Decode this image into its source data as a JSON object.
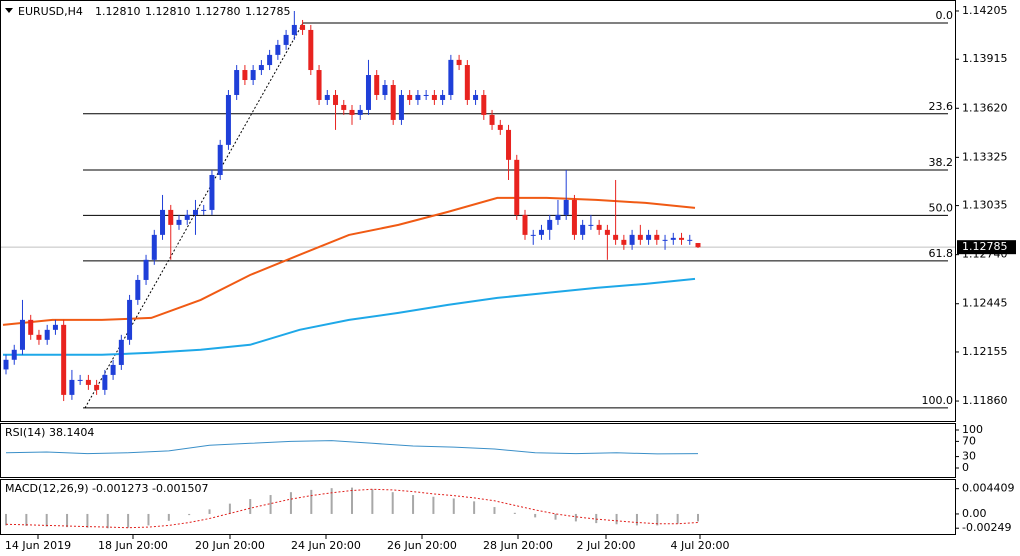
{
  "chart_data": [
    {
      "type": "candlestick",
      "title": "EURUSD,H4",
      "ohlc_labels": [
        "1.12810",
        "1.12810",
        "1.12780",
        "1.12785"
      ],
      "up_color": "#1f3fd8",
      "down_color": "#e8231f",
      "ylim": [
        1.1174,
        1.14271
      ],
      "yticks": [
        1.14205,
        1.13915,
        {
          "value": 1.1362,
          "label": "1.13620"
        },
        1.13325,
        1.13035,
        {
          "value": 1.1274,
          "label": "1.12740"
        },
        1.12445,
        1.12155,
        {
          "value": 1.1186,
          "label": "1.11860"
        }
      ],
      "x_labels": [
        "14 Jun 2019",
        "18 Jun 20:00",
        "20 Jun 20:00",
        "24 Jun 20:00",
        "26 Jun 20:00",
        "28 Jun 20:00",
        "2 Jul 20:00",
        "4 Jul 20:00"
      ],
      "fib": [
        {
          "label": "0.0",
          "price": 1.14133
        },
        {
          "label": "23.6",
          "price": 1.13587
        },
        {
          "label": "38.2",
          "price": 1.13249
        },
        {
          "label": "50.0",
          "price": 1.12976
        },
        {
          "label": "61.8",
          "price": 1.12703
        },
        {
          "label": "100.0",
          "price": 1.11819
        }
      ],
      "open": [
        1.1205,
        1.12108,
        1.12168,
        1.12348,
        1.12258,
        1.12228,
        1.12288,
        1.12318,
        1.11897,
        1.11987,
        1.11987,
        1.11957,
        1.11927,
        1.12017,
        1.12077,
        1.12228,
        1.12468,
        1.12588,
        1.12709,
        1.12859,
        1.13009,
        1.12919,
        1.12949,
        1.12979,
        1.13009,
        1.13009,
        1.13219,
        1.134,
        1.137,
        1.1385,
        1.1379,
        1.1385,
        1.1388,
        1.13941,
        1.14001,
        1.14061,
        1.14121,
        1.14091,
        1.1385,
        1.1367,
        1.137,
        1.1364,
        1.1361,
        1.1358,
        1.1361,
        1.1382,
        1.137,
        1.1376,
        1.1355,
        1.137,
        1.1367,
        1.137,
        1.137,
        1.1367,
        1.137,
        1.13911,
        1.1388,
        1.1367,
        1.137,
        1.1358,
        1.1352,
        1.1349,
        1.1331,
        1.12979,
        1.12859,
        1.12859,
        1.12889,
        1.12949,
        1.12979,
        1.13069,
        1.12859,
        1.12919,
        1.12919,
        1.12889,
        1.12859,
        1.12829,
        1.12799,
        1.12859,
        1.12829,
        1.12859,
        1.12829,
        1.12829,
        1.12841,
        1.12829,
        1.1281
      ],
      "high": [
        1.12138,
        1.12198,
        1.12468,
        1.12378,
        1.12288,
        1.12318,
        1.12348,
        1.12348,
        1.12047,
        1.12017,
        1.12017,
        1.11987,
        1.12047,
        1.12107,
        1.12258,
        1.12498,
        1.12618,
        1.12739,
        1.12889,
        1.13099,
        1.13039,
        1.12979,
        1.13009,
        1.13069,
        1.13039,
        1.13249,
        1.1343,
        1.1373,
        1.1388,
        1.1388,
        1.1388,
        1.1391,
        1.13971,
        1.14031,
        1.14091,
        1.14205,
        1.14151,
        1.14121,
        1.1388,
        1.1373,
        1.1373,
        1.1367,
        1.1364,
        1.1364,
        1.13911,
        1.1385,
        1.1379,
        1.1379,
        1.1373,
        1.1373,
        1.1373,
        1.1373,
        1.1373,
        1.1373,
        1.13941,
        1.13941,
        1.1391,
        1.1373,
        1.1373,
        1.1361,
        1.1355,
        1.1352,
        1.1334,
        1.13009,
        1.12889,
        1.12919,
        1.12979,
        1.13069,
        1.13249,
        1.13099,
        1.12949,
        1.12979,
        1.12949,
        1.12919,
        1.13189,
        1.12859,
        1.12889,
        1.12919,
        1.12889,
        1.12889,
        1.12859,
        1.12871,
        1.12871,
        1.12859,
        1.1281
      ],
      "low": [
        1.1202,
        1.12078,
        1.12138,
        1.12228,
        1.12198,
        1.12198,
        1.12258,
        1.1186,
        1.11867,
        1.11957,
        1.11927,
        1.11897,
        1.11897,
        1.11987,
        1.12047,
        1.12198,
        1.12438,
        1.12558,
        1.12679,
        1.12829,
        1.12709,
        1.12889,
        1.12919,
        1.12859,
        1.12979,
        1.12979,
        1.13189,
        1.1337,
        1.1367,
        1.1376,
        1.1376,
        1.1382,
        1.1385,
        1.13911,
        1.13971,
        1.14031,
        1.14061,
        1.1382,
        1.1364,
        1.1364,
        1.1349,
        1.1358,
        1.1352,
        1.1355,
        1.1358,
        1.1367,
        1.1367,
        1.1352,
        1.1352,
        1.1364,
        1.1364,
        1.1367,
        1.1364,
        1.1364,
        1.1367,
        1.1385,
        1.1364,
        1.1364,
        1.1355,
        1.1349,
        1.1346,
        1.13189,
        1.12949,
        1.12829,
        1.12799,
        1.12829,
        1.12829,
        1.12919,
        1.12949,
        1.12829,
        1.12829,
        1.12889,
        1.12859,
        1.12709,
        1.12799,
        1.12769,
        1.12769,
        1.12799,
        1.12799,
        1.12799,
        1.12769,
        1.12799,
        1.12799,
        1.12799,
        1.1278
      ],
      "close": [
        1.12108,
        1.12168,
        1.12348,
        1.12258,
        1.12228,
        1.12288,
        1.12318,
        1.11897,
        1.11987,
        1.11987,
        1.11957,
        1.11927,
        1.12017,
        1.12077,
        1.12228,
        1.12468,
        1.12588,
        1.12709,
        1.12859,
        1.13009,
        1.12919,
        1.12949,
        1.12979,
        1.13009,
        1.13009,
        1.13219,
        1.134,
        1.137,
        1.1385,
        1.1379,
        1.1385,
        1.1388,
        1.13941,
        1.14001,
        1.14061,
        1.14121,
        1.14091,
        1.1385,
        1.1367,
        1.137,
        1.1364,
        1.1361,
        1.1358,
        1.1361,
        1.1382,
        1.137,
        1.1376,
        1.1355,
        1.137,
        1.1367,
        1.137,
        1.137,
        1.1367,
        1.137,
        1.13911,
        1.1388,
        1.1367,
        1.137,
        1.1358,
        1.1352,
        1.1349,
        1.1331,
        1.12979,
        1.12859,
        1.12859,
        1.12889,
        1.12949,
        1.12979,
        1.13069,
        1.12859,
        1.12919,
        1.12919,
        1.12889,
        1.12859,
        1.12829,
        1.12799,
        1.12859,
        1.12829,
        1.12859,
        1.12829,
        1.12829,
        1.12841,
        1.12829,
        1.12829,
        1.12785
      ],
      "series": [
        {
          "color": "#f05a14",
          "values": [
            1.12318,
            1.12348,
            1.12348,
            1.1236,
            1.12468,
            1.12618,
            1.12739,
            1.12859,
            1.12919,
            1.12997,
            1.13081,
            1.13081,
            1.13069,
            1.13051,
            1.13021
          ]
        },
        {
          "color": "#1ea8e8",
          "values": [
            1.12138,
            1.12138,
            1.12138,
            1.1215,
            1.12168,
            1.12198,
            1.12288,
            1.12348,
            1.1239,
            1.12438,
            1.1248,
            1.1251,
            1.1254,
            1.12564,
            1.12594
          ]
        }
      ]
    },
    {
      "type": "line",
      "title": "RSI(14) 38.1404",
      "ylim": [
        -23.7,
        118.4
      ],
      "yticks": [
        100,
        70,
        30,
        0
      ],
      "series": [
        {
          "color": "#3a8fc8",
          "values": [
            40,
            42,
            38,
            40,
            45,
            60,
            65,
            70,
            72,
            65,
            58,
            55,
            50,
            40,
            38,
            40,
            37,
            38
          ]
        }
      ]
    },
    {
      "type": "macd",
      "title": "MACD(12,26,9) -0.001273 -0.001507",
      "ylim": [
        -0.0035,
        0.0061
      ],
      "yticks": [
        0.004409,
        {
          "value": 0,
          "label": "0.00"
        },
        -0.00249
      ],
      "hist_color": "#a8a8a8",
      "signal_color": "#e0201c",
      "histogram": [
        -0.002,
        -0.0021,
        -0.0022,
        -0.0023,
        -0.0024,
        -0.0025,
        -0.0024,
        -0.002,
        -0.0012,
        -0.0002,
        0.0008,
        0.0018,
        0.0026,
        0.0033,
        0.0038,
        0.0042,
        0.0045,
        0.0046,
        0.0043,
        0.0038,
        0.0033,
        0.003,
        0.0027,
        0.0022,
        0.0012,
        0.0002,
        -0.0006,
        -0.001,
        -0.0013,
        -0.0016,
        -0.0018,
        -0.002,
        -0.002,
        -0.0017,
        -0.0013
      ],
      "signal": [
        -0.0018,
        -0.0019,
        -0.002,
        -0.0021,
        -0.0022,
        -0.0023,
        -0.0024,
        -0.0023,
        -0.002,
        -0.0015,
        -0.0008,
        0.0001,
        0.001,
        0.0018,
        0.0026,
        0.0032,
        0.0037,
        0.0041,
        0.0043,
        0.0042,
        0.0039,
        0.0035,
        0.0032,
        0.0028,
        0.0023,
        0.0015,
        0.0007,
        0.0,
        -0.0005,
        -0.0009,
        -0.0012,
        -0.0015,
        -0.0017,
        -0.0017,
        -0.0015
      ]
    }
  ]
}
